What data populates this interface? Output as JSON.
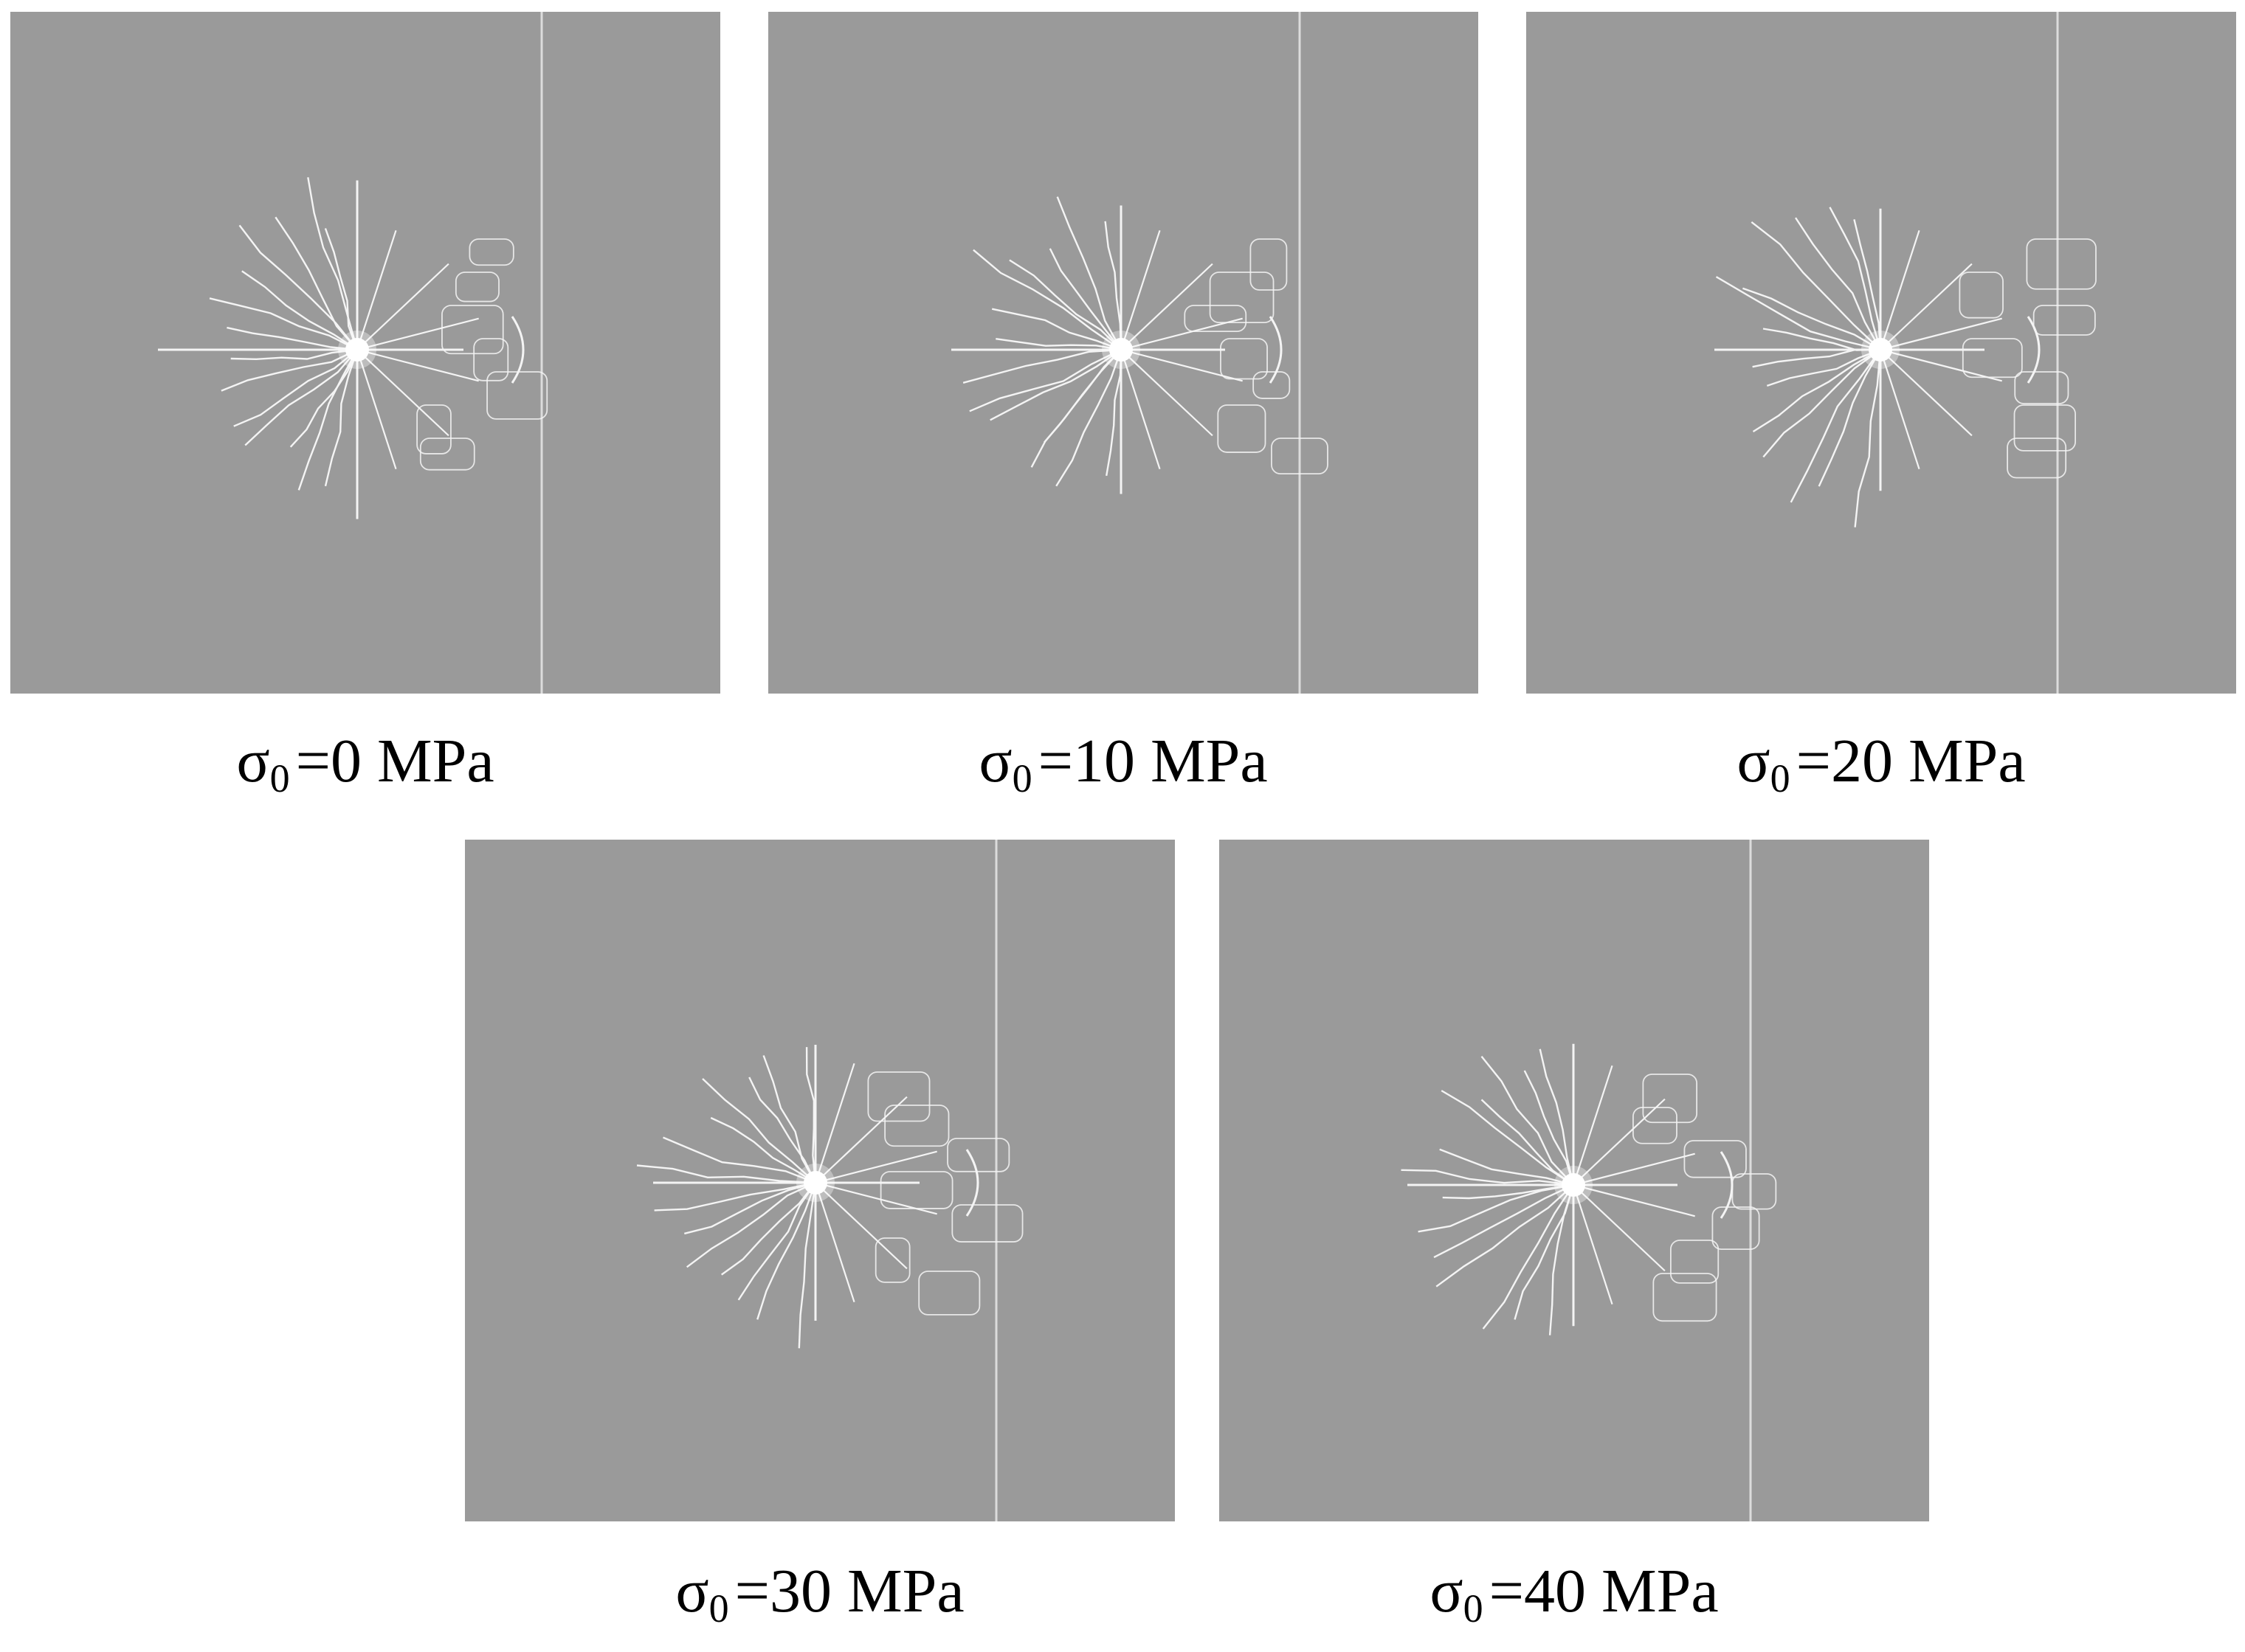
{
  "panels": [
    {
      "symbol": "σ",
      "sub": "0",
      "value": "=0 MPa"
    },
    {
      "symbol": "σ",
      "sub": "0",
      "value": "=10 MPa"
    },
    {
      "symbol": "σ",
      "sub": "0",
      "value": "=20 MPa"
    },
    {
      "symbol": "σ",
      "sub": "0",
      "value": "=30 MPa"
    },
    {
      "symbol": "σ",
      "sub": "0",
      "value": "=40 MPa"
    }
  ],
  "colors": {
    "background": "#9a9a9a",
    "crack": "#f4f4f4",
    "joint": "#dcdcdc"
  }
}
